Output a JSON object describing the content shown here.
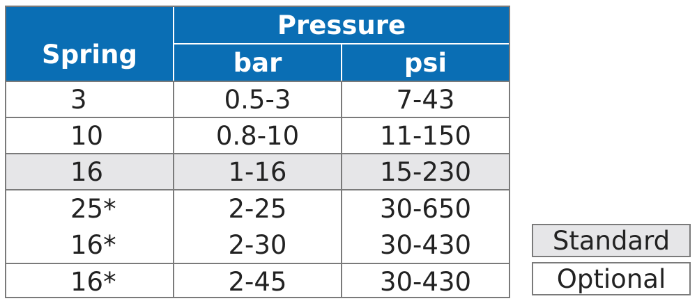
{
  "table": {
    "header": {
      "spring": "Spring",
      "pressure": "Pressure",
      "bar": "bar",
      "psi": "psi"
    },
    "rows": [
      {
        "spring": [
          "3"
        ],
        "bar": [
          "0.5-3"
        ],
        "psi": [
          "7-43"
        ],
        "type": "Optional"
      },
      {
        "spring": [
          "10"
        ],
        "bar": [
          "0.8-10"
        ],
        "psi": [
          "11-150"
        ],
        "type": "Optional"
      },
      {
        "spring": [
          "16"
        ],
        "bar": [
          "1-16"
        ],
        "psi": [
          "15-230"
        ],
        "type": "Standard"
      },
      {
        "spring": [
          "25*",
          "16*"
        ],
        "bar": [
          "2-25",
          "2-30"
        ],
        "psi": [
          "30-650",
          "30-430"
        ],
        "type": "Optional"
      },
      {
        "spring": [
          "16*"
        ],
        "bar": [
          "2-45"
        ],
        "psi": [
          "30-430"
        ],
        "type": "Optional"
      }
    ]
  },
  "legend": {
    "standard": "Standard",
    "optional": "Optional"
  },
  "colors": {
    "header_bg": "#0a6eb4",
    "standard_bg": "#e6e6e8",
    "border": "#7a7a7a"
  }
}
